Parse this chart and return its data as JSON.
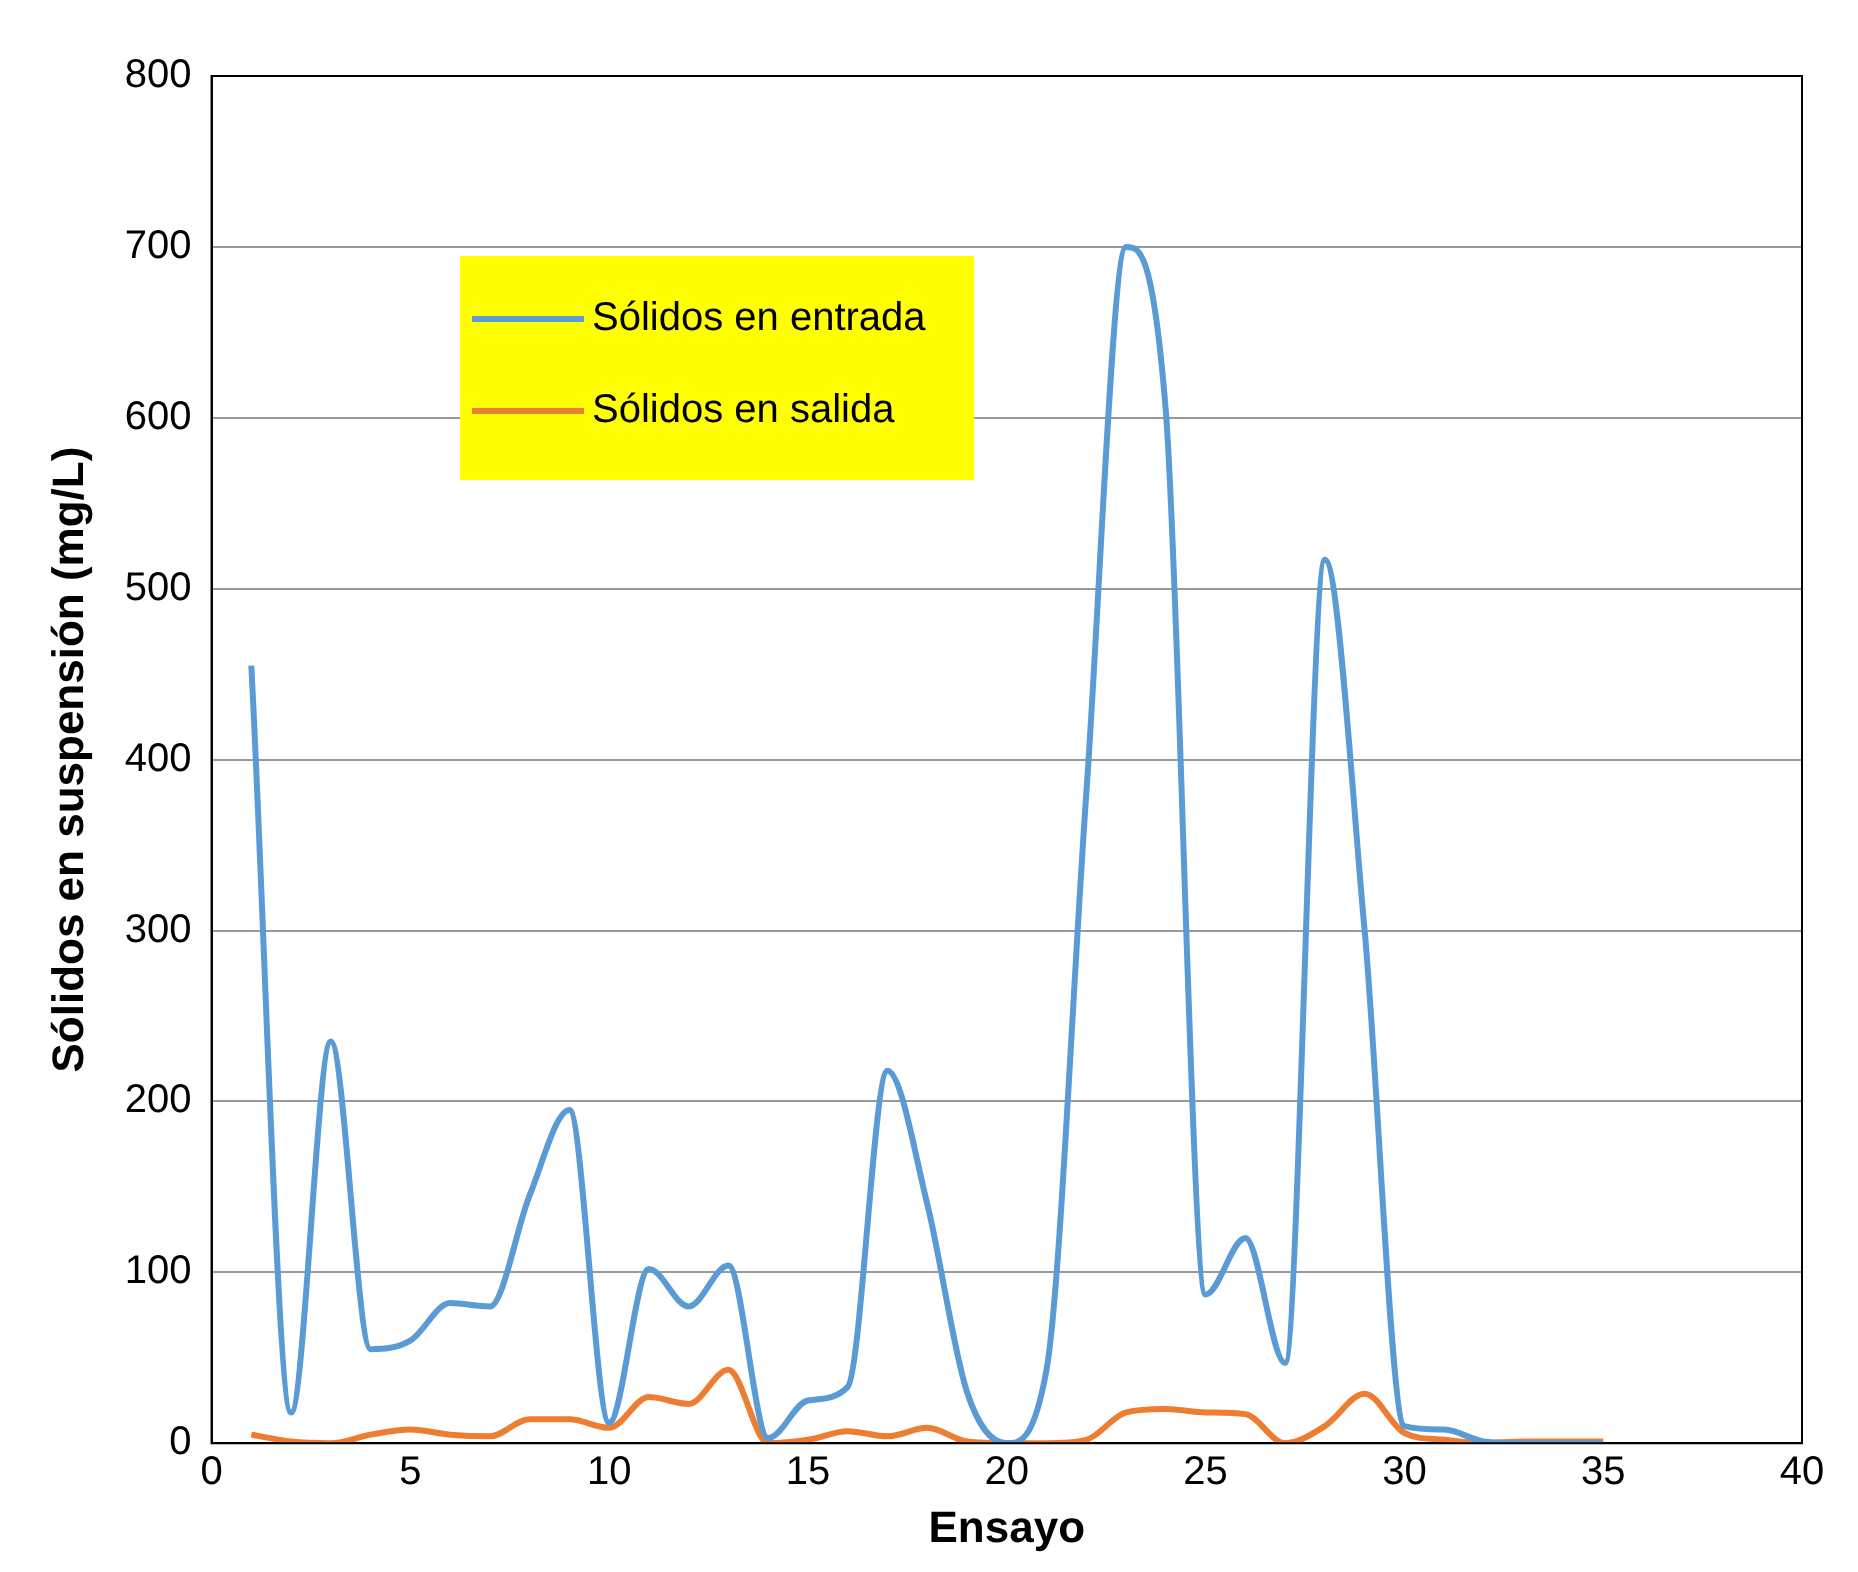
{
  "chart_data": {
    "type": "line",
    "xlabel": "Ensayo",
    "ylabel": "Sólidos en suspensión (mg/L)",
    "x": [
      1,
      2,
      3,
      4,
      5,
      6,
      7,
      8,
      9,
      10,
      11,
      12,
      13,
      14,
      15,
      16,
      17,
      18,
      19,
      20,
      21,
      22,
      23,
      24,
      25,
      26,
      27,
      28,
      29,
      30,
      31,
      32,
      33,
      34,
      35
    ],
    "series": [
      {
        "name": "Sólidos en entrada",
        "color": "#5b9bd5",
        "values": [
          455,
          18,
          235,
          55,
          60,
          82,
          80,
          145,
          195,
          12,
          102,
          80,
          104,
          3,
          25,
          33,
          218,
          140,
          30,
          0,
          43,
          380,
          700,
          604,
          87,
          120,
          47,
          517,
          300,
          10,
          8,
          1,
          0,
          0,
          0
        ]
      },
      {
        "name": "Sólidos en salida",
        "color": "#ed7d31",
        "values": [
          5,
          1,
          0,
          5,
          8,
          5,
          4,
          14,
          14,
          9,
          27,
          23,
          43,
          0,
          2,
          7,
          4,
          9,
          1,
          0,
          0,
          2,
          18,
          20,
          18,
          17,
          0,
          10,
          29,
          6,
          2,
          0,
          1,
          1,
          1
        ]
      }
    ],
    "xlim": [
      0,
      40
    ],
    "xticks": [
      0,
      5,
      10,
      15,
      20,
      25,
      30,
      35,
      40
    ],
    "ylim": [
      0,
      800
    ],
    "yticks": [
      0,
      100,
      200,
      300,
      400,
      500,
      600,
      700,
      800
    ],
    "grid": "y",
    "legend": "top left",
    "marker": "none",
    "line_style": "solid"
  }
}
